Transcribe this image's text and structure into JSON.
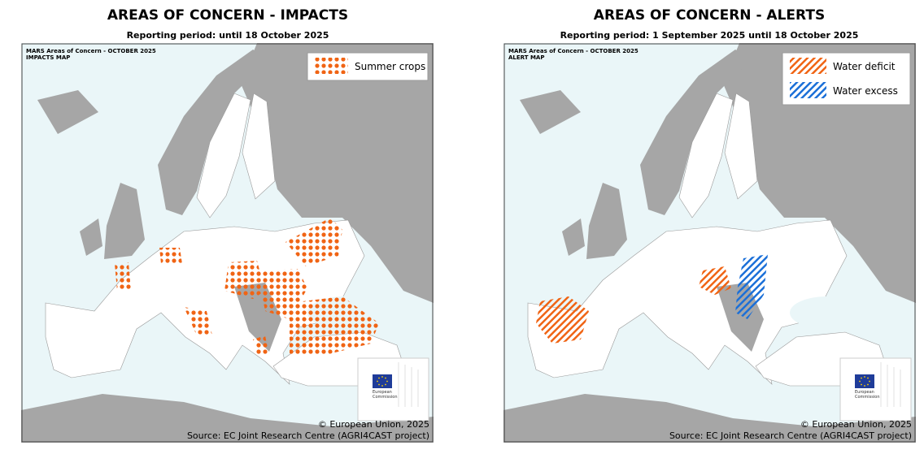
{
  "maps": [
    {
      "title": "AREAS OF CONCERN - IMPACTS",
      "subtitle": "Reporting period: until 18 October 2025",
      "map_label": [
        "MARS Areas of Concern - OCTOBER 2025",
        "IMPACTS MAP"
      ],
      "legend": [
        "Summer crops"
      ],
      "logo_text": [
        "European",
        "Commission"
      ],
      "credit": "© European Union, 2025",
      "source": "Source: EC Joint Research Centre (AGRI4CAST project)"
    },
    {
      "title": "AREAS OF CONCERN - ALERTS",
      "subtitle": "Reporting period: 1 September 2025 until 18 October 2025",
      "map_label": [
        "MARS Areas of Concern - OCTOBER 2025",
        "ALERT MAP"
      ],
      "legend": [
        "Water deficit",
        "Water excess"
      ],
      "logo_text": [
        "European",
        "Commission"
      ],
      "credit": "© European Union, 2025",
      "source": "Source: EC Joint Research Centre (AGRI4CAST project)"
    }
  ]
}
